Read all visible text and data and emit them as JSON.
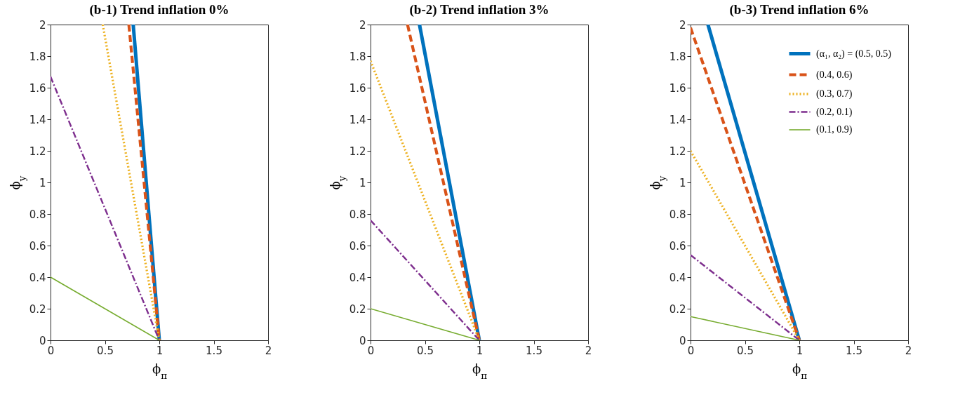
{
  "chart_data": [
    {
      "type": "line",
      "title": "(b-1) Trend inflation 0%",
      "xlabel": "ϕ$_{π}$",
      "ylabel": "ϕ$_{y}$",
      "xlim": [
        0,
        2
      ],
      "ylim": [
        0,
        2
      ],
      "xticks": [
        0,
        0.5,
        1,
        1.5,
        2
      ],
      "yticks": [
        0,
        0.2,
        0.4,
        0.6,
        0.8,
        1,
        1.2,
        1.4,
        1.6,
        1.8,
        2
      ],
      "grid": false,
      "legend": false,
      "series": [
        {
          "color": "#0072bd",
          "line_style": "solid",
          "x": [
            0.76,
            1
          ],
          "values": [
            2,
            0
          ]
        },
        {
          "color": "#d95319",
          "line_style": "dashed",
          "x": [
            0.72,
            1
          ],
          "values": [
            2,
            0
          ]
        },
        {
          "color": "#edb120",
          "line_style": "dotted",
          "x": [
            0.48,
            1
          ],
          "values": [
            2,
            0
          ]
        },
        {
          "color": "#7e2f8e",
          "line_style": "dashdot",
          "x": [
            0,
            1
          ],
          "values": [
            1.67,
            0
          ]
        },
        {
          "color": "#77ac30",
          "line_style": "solid",
          "x": [
            0,
            1
          ],
          "values": [
            0.4,
            0
          ]
        }
      ]
    },
    {
      "type": "line",
      "title": "(b-2) Trend inflation 3%",
      "xlabel": "ϕ$_{π}$",
      "ylabel": "ϕ$_{y}$",
      "xlim": [
        0,
        2
      ],
      "ylim": [
        0,
        2
      ],
      "xticks": [
        0,
        0.5,
        1,
        1.5,
        2
      ],
      "yticks": [
        0,
        0.2,
        0.4,
        0.6,
        0.8,
        1,
        1.2,
        1.4,
        1.6,
        1.8,
        2
      ],
      "grid": false,
      "legend": false,
      "series": [
        {
          "color": "#0072bd",
          "line_style": "solid",
          "x": [
            0.45,
            1
          ],
          "values": [
            2,
            0
          ]
        },
        {
          "color": "#d95319",
          "line_style": "dashed",
          "x": [
            0.34,
            1
          ],
          "values": [
            2,
            0
          ]
        },
        {
          "color": "#edb120",
          "line_style": "dotted",
          "x": [
            0,
            1
          ],
          "values": [
            1.77,
            0
          ]
        },
        {
          "color": "#7e2f8e",
          "line_style": "dashdot",
          "x": [
            0,
            1
          ],
          "values": [
            0.76,
            0
          ]
        },
        {
          "color": "#77ac30",
          "line_style": "solid",
          "x": [
            0,
            1
          ],
          "values": [
            0.2,
            0
          ]
        }
      ]
    },
    {
      "type": "line",
      "title": "(b-3) Trend inflation 6%",
      "xlabel": "ϕ$_{π}$",
      "ylabel": "ϕ$_{y}$",
      "xlim": [
        0,
        2
      ],
      "ylim": [
        0,
        2
      ],
      "xticks": [
        0,
        0.5,
        1,
        1.5,
        2
      ],
      "yticks": [
        0,
        0.2,
        0.4,
        0.6,
        0.8,
        1,
        1.2,
        1.4,
        1.6,
        1.8,
        2
      ],
      "grid": false,
      "legend": "top right",
      "series": [
        {
          "name": "(α₁, α₂) = (0.5, 0.5)",
          "color": "#0072bd",
          "line_style": "solid",
          "x": [
            0.16,
            1
          ],
          "values": [
            2,
            0
          ]
        },
        {
          "name": "(0.4, 0.6)",
          "color": "#d95319",
          "line_style": "dashed",
          "x": [
            0,
            1
          ],
          "values": [
            1.98,
            0
          ]
        },
        {
          "name": "(0.3, 0.7)",
          "color": "#edb120",
          "line_style": "dotted",
          "x": [
            0,
            1
          ],
          "values": [
            1.2,
            0
          ]
        },
        {
          "name": "(0.2, 0.1)",
          "color": "#7e2f8e",
          "line_style": "dashdot",
          "x": [
            0,
            1
          ],
          "values": [
            0.54,
            0
          ]
        },
        {
          "name": "(0.1, 0.9)",
          "color": "#77ac30",
          "line_style": "solid",
          "x": [
            0,
            1
          ],
          "values": [
            0.15,
            0
          ]
        }
      ]
    }
  ]
}
